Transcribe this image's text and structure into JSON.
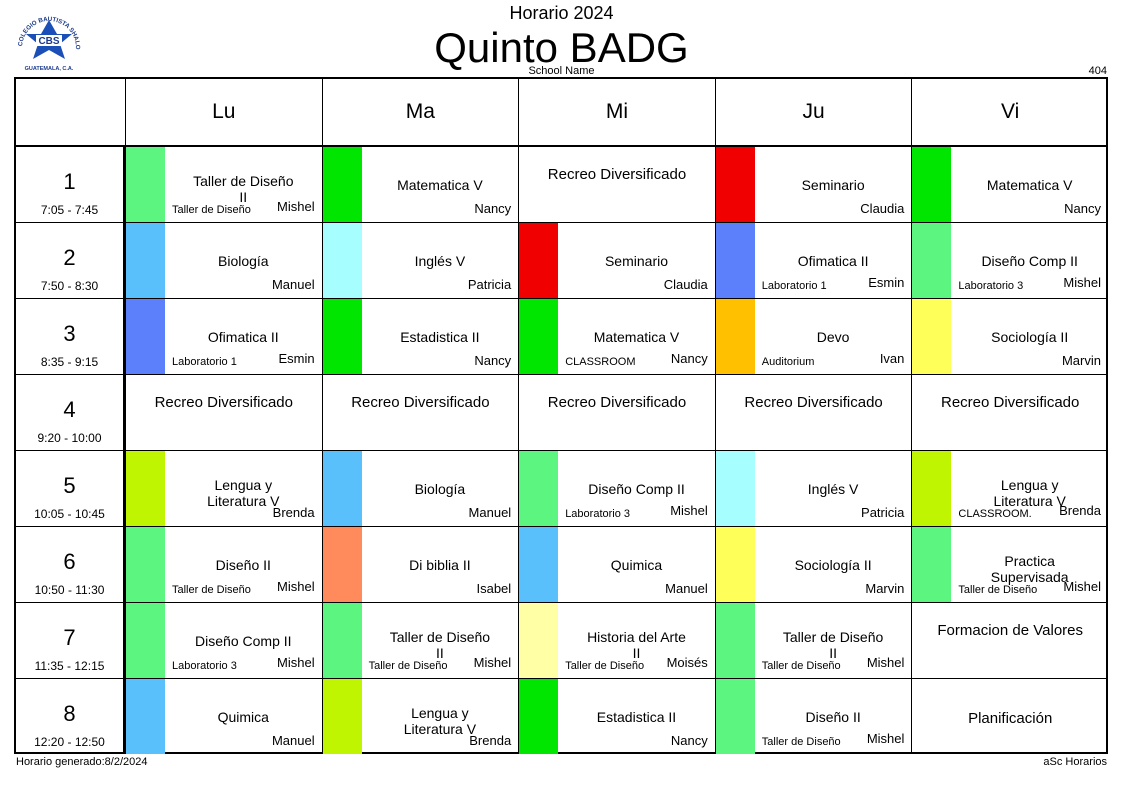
{
  "header": {
    "top_title": "Horario 2024",
    "main_title": "Quinto BADG",
    "school_name": "School Name",
    "room_code": "404",
    "logo": {
      "text": "CBS",
      "ring_text": "COLEGIO BAUTISTA SHALOM",
      "bottom_text": "GUATEMALA, C.A."
    }
  },
  "days": [
    "Lu",
    "Ma",
    "Mi",
    "Ju",
    "Vi"
  ],
  "periods": [
    {
      "num": "1",
      "time": "7:05 - 7:45"
    },
    {
      "num": "2",
      "time": "7:50 - 8:30"
    },
    {
      "num": "3",
      "time": "8:35 - 9:15"
    },
    {
      "num": "4",
      "time": "9:20 - 10:00"
    },
    {
      "num": "5",
      "time": "10:05 - 10:45"
    },
    {
      "num": "6",
      "time": "10:50 - 11:30"
    },
    {
      "num": "7",
      "time": "11:35 - 12:15"
    },
    {
      "num": "8",
      "time": "12:20 - 12:50"
    }
  ],
  "schedule": [
    [
      {
        "subject": "Taller de Diseño II",
        "teacher": "Mishel",
        "room": "Taller de Diseño",
        "color": "#5cf57f"
      },
      {
        "subject": "Matematica V",
        "teacher": "Nancy",
        "room": "",
        "color": "#00e600"
      },
      {
        "plain": "Recreo Diversificado"
      },
      {
        "subject": "Seminario",
        "teacher": "Claudia",
        "room": "",
        "color": "#f00000"
      },
      {
        "subject": "Matematica V",
        "teacher": "Nancy",
        "room": "",
        "color": "#00e600"
      }
    ],
    [
      {
        "subject": "Biología",
        "teacher": "Manuel",
        "room": "",
        "color": "#5ac0fc"
      },
      {
        "subject": "Inglés V",
        "teacher": "Patricia",
        "room": "",
        "color": "#a6fffe"
      },
      {
        "subject": "Seminario",
        "teacher": "Claudia",
        "room": "",
        "color": "#f00000"
      },
      {
        "subject": "Ofimatica II",
        "teacher": "Esmin",
        "room": "Laboratorio 1",
        "color": "#5c7ffc"
      },
      {
        "subject": "Diseño Comp II",
        "teacher": "Mishel",
        "room": "Laboratorio 3",
        "color": "#5cf57f"
      }
    ],
    [
      {
        "subject": "Ofimatica II",
        "teacher": "Esmin",
        "room": "Laboratorio 1",
        "color": "#5c7ffc"
      },
      {
        "subject": "Estadistica II",
        "teacher": "Nancy",
        "room": "",
        "color": "#00e600"
      },
      {
        "subject": "Matematica V",
        "teacher": "Nancy",
        "room": "CLASSROOM",
        "color": "#00e600"
      },
      {
        "subject": "Devo",
        "teacher": "Ivan",
        "room": "Auditorium",
        "color": "#ffc000"
      },
      {
        "subject": "Sociología II",
        "teacher": "Marvin",
        "room": "",
        "color": "#ffff5a"
      }
    ],
    [
      {
        "plain": "Recreo Diversificado"
      },
      {
        "plain": "Recreo Diversificado"
      },
      {
        "plain": "Recreo Diversificado"
      },
      {
        "plain": "Recreo Diversificado"
      },
      {
        "plain": "Recreo Diversificado"
      }
    ],
    [
      {
        "subject": "Lengua y Literatura V",
        "teacher": "Brenda",
        "room": "",
        "color": "#bff500"
      },
      {
        "subject": "Biología",
        "teacher": "Manuel",
        "room": "",
        "color": "#5ac0fc"
      },
      {
        "subject": "Diseño Comp II",
        "teacher": "Mishel",
        "room": "Laboratorio 3",
        "color": "#5cf57f"
      },
      {
        "subject": "Inglés V",
        "teacher": "Patricia",
        "room": "",
        "color": "#a6fffe"
      },
      {
        "subject": "Lengua y Literatura V",
        "teacher": "Brenda",
        "room": "CLASSROOM.",
        "color": "#bff500"
      }
    ],
    [
      {
        "subject": "Diseño II",
        "teacher": "Mishel",
        "room": "Taller de Diseño",
        "color": "#5cf57f"
      },
      {
        "subject": "Di biblia II",
        "teacher": "Isabel",
        "room": "",
        "color": "#ff8a5c"
      },
      {
        "subject": "Quimica",
        "teacher": "Manuel",
        "room": "",
        "color": "#5ac0fc"
      },
      {
        "subject": "Sociología II",
        "teacher": "Marvin",
        "room": "",
        "color": "#ffff5a"
      },
      {
        "subject": "Practica Supervisada",
        "teacher": "Mishel",
        "room": "Taller de Diseño",
        "color": "#5cf57f"
      }
    ],
    [
      {
        "subject": "Diseño Comp II",
        "teacher": "Mishel",
        "room": "Laboratorio 3",
        "color": "#5cf57f"
      },
      {
        "subject": "Taller de Diseño II",
        "teacher": "Mishel",
        "room": "Taller de Diseño",
        "color": "#5cf57f"
      },
      {
        "subject": "Historia del Arte II",
        "teacher": "Moisés",
        "room": "Taller de Diseño",
        "color": "#ffffa6"
      },
      {
        "subject": "Taller de Diseño II",
        "teacher": "Mishel",
        "room": "Taller de Diseño",
        "color": "#5cf57f"
      },
      {
        "plain": "Formacion de Valores"
      }
    ],
    [
      {
        "subject": "Quimica",
        "teacher": "Manuel",
        "room": "",
        "color": "#5ac0fc"
      },
      {
        "subject": "Lengua y Literatura V",
        "teacher": "Brenda",
        "room": "",
        "color": "#bff500"
      },
      {
        "subject": "Estadistica II",
        "teacher": "Nancy",
        "room": "",
        "color": "#00e600"
      },
      {
        "subject": "Diseño II",
        "teacher": "Mishel",
        "room": "Taller de Diseño",
        "color": "#5cf57f"
      },
      {
        "plain": "Planificación"
      }
    ]
  ],
  "footer": {
    "generated": "Horario generado:8/2/2024",
    "brand": "aSc Horarios"
  }
}
